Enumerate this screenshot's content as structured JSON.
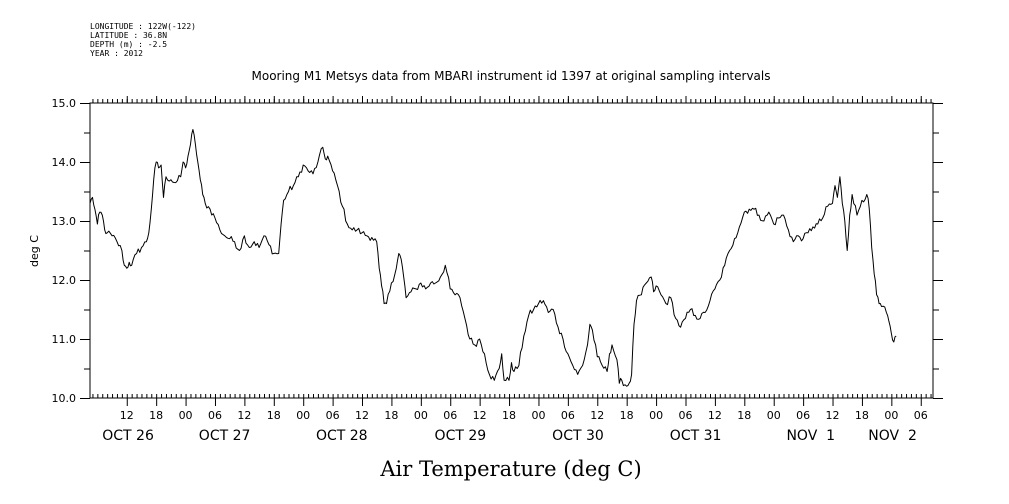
{
  "header": {
    "longitude": "LONGITUDE : 122W(-122)",
    "latitude": "LATITUDE : 36.8N",
    "depth": "DEPTH (m) : -2.5",
    "year": "YEAR : 2012"
  },
  "chart_data": {
    "type": "line",
    "title": "Mooring M1 Metsys data from MBARI instrument id 1397 at original sampling intervals",
    "xlabel": "Air Temperature (deg C)",
    "ylabel": "deg C",
    "ylim": [
      10.0,
      15.0
    ],
    "y_ticks": [
      "10.0",
      "11.0",
      "12.0",
      "13.0",
      "14.0",
      "15.0"
    ],
    "x_unit": "hours since OCT 26 00:00 (2012)",
    "xlim": [
      4.5,
      176.5
    ],
    "hour_ticks": [
      {
        "x": 12,
        "label": "12"
      },
      {
        "x": 18,
        "label": "18"
      },
      {
        "x": 24,
        "label": "00"
      },
      {
        "x": 30,
        "label": "06"
      },
      {
        "x": 36,
        "label": "12"
      },
      {
        "x": 42,
        "label": "18"
      },
      {
        "x": 48,
        "label": "00"
      },
      {
        "x": 54,
        "label": "06"
      },
      {
        "x": 60,
        "label": "12"
      },
      {
        "x": 66,
        "label": "18"
      },
      {
        "x": 72,
        "label": "00"
      },
      {
        "x": 78,
        "label": "06"
      },
      {
        "x": 84,
        "label": "12"
      },
      {
        "x": 90,
        "label": "18"
      },
      {
        "x": 96,
        "label": "00"
      },
      {
        "x": 102,
        "label": "06"
      },
      {
        "x": 108,
        "label": "12"
      },
      {
        "x": 114,
        "label": "18"
      },
      {
        "x": 120,
        "label": "00"
      },
      {
        "x": 126,
        "label": "06"
      },
      {
        "x": 132,
        "label": "12"
      },
      {
        "x": 138,
        "label": "18"
      },
      {
        "x": 144,
        "label": "00"
      },
      {
        "x": 150,
        "label": "06"
      },
      {
        "x": 156,
        "label": "12"
      },
      {
        "x": 162,
        "label": "18"
      },
      {
        "x": 168,
        "label": "00"
      },
      {
        "x": 174,
        "label": "06"
      }
    ],
    "day_labels": [
      {
        "x": 7,
        "label": "OCT 26"
      },
      {
        "x": 26.7,
        "label": "OCT 27"
      },
      {
        "x": 50.6,
        "label": "OCT 28"
      },
      {
        "x": 74.8,
        "label": "OCT 29"
      },
      {
        "x": 98.8,
        "label": "OCT 30"
      },
      {
        "x": 122.8,
        "label": "OCT 31"
      },
      {
        "x": 146.6,
        "label": "NOV  1"
      },
      {
        "x": 163.3,
        "label": "NOV  2"
      }
    ],
    "series": [
      {
        "points": [
          [
            4.5,
            13.3
          ],
          [
            5,
            13.4
          ],
          [
            5.5,
            13.2
          ],
          [
            6,
            12.95
          ],
          [
            6.5,
            13.15
          ],
          [
            7,
            13.1
          ],
          [
            7.5,
            12.85
          ],
          [
            8,
            12.8
          ],
          [
            9,
            12.75
          ],
          [
            10,
            12.65
          ],
          [
            11,
            12.5
          ],
          [
            11.5,
            12.25
          ],
          [
            12,
            12.2
          ],
          [
            12.5,
            12.3
          ],
          [
            13,
            12.25
          ],
          [
            14,
            12.45
          ],
          [
            15,
            12.55
          ],
          [
            16,
            12.65
          ],
          [
            16.5,
            12.8
          ],
          [
            17,
            13.2
          ],
          [
            17.5,
            13.7
          ],
          [
            18,
            14.0
          ],
          [
            18.5,
            13.9
          ],
          [
            19,
            13.95
          ],
          [
            19.5,
            13.4
          ],
          [
            20,
            13.75
          ],
          [
            21,
            13.7
          ],
          [
            22,
            13.65
          ],
          [
            23,
            13.75
          ],
          [
            23.5,
            14.0
          ],
          [
            24,
            13.9
          ],
          [
            24.5,
            14.1
          ],
          [
            25,
            14.3
          ],
          [
            25.5,
            14.55
          ],
          [
            26,
            14.3
          ],
          [
            26.5,
            14.0
          ],
          [
            27,
            13.7
          ],
          [
            27.5,
            13.45
          ],
          [
            28,
            13.3
          ],
          [
            29,
            13.2
          ],
          [
            30,
            13.05
          ],
          [
            31,
            12.85
          ],
          [
            32,
            12.75
          ],
          [
            33,
            12.7
          ],
          [
            34,
            12.65
          ],
          [
            35,
            12.5
          ],
          [
            36,
            12.75
          ],
          [
            37,
            12.55
          ],
          [
            38,
            12.65
          ],
          [
            39,
            12.55
          ],
          [
            40,
            12.75
          ],
          [
            41,
            12.6
          ],
          [
            42,
            12.45
          ],
          [
            43,
            12.45
          ],
          [
            43.5,
            12.95
          ],
          [
            44,
            13.35
          ],
          [
            45,
            13.5
          ],
          [
            46,
            13.6
          ],
          [
            47,
            13.75
          ],
          [
            48,
            13.95
          ],
          [
            49,
            13.85
          ],
          [
            50,
            13.8
          ],
          [
            51,
            14.0
          ],
          [
            52,
            14.25
          ],
          [
            52.5,
            14.05
          ],
          [
            53,
            14.1
          ],
          [
            54,
            13.85
          ],
          [
            55,
            13.6
          ],
          [
            56,
            13.25
          ],
          [
            57,
            12.95
          ],
          [
            58,
            12.85
          ],
          [
            59,
            12.85
          ],
          [
            60,
            12.8
          ],
          [
            61,
            12.75
          ],
          [
            62,
            12.72
          ],
          [
            63,
            12.65
          ],
          [
            63.5,
            12.2
          ],
          [
            64,
            11.9
          ],
          [
            64.5,
            11.6
          ],
          [
            65,
            11.6
          ],
          [
            66,
            11.95
          ],
          [
            67,
            12.2
          ],
          [
            67.5,
            12.45
          ],
          [
            68,
            12.35
          ],
          [
            68.5,
            12.05
          ],
          [
            69,
            11.7
          ],
          [
            70,
            11.8
          ],
          [
            71,
            11.85
          ],
          [
            72,
            11.95
          ],
          [
            73,
            11.85
          ],
          [
            74,
            11.95
          ],
          [
            75,
            11.95
          ],
          [
            76,
            12.05
          ],
          [
            77,
            12.25
          ],
          [
            78,
            11.85
          ],
          [
            79,
            11.75
          ],
          [
            80,
            11.7
          ],
          [
            81,
            11.35
          ],
          [
            82,
            11.0
          ],
          [
            83,
            10.9
          ],
          [
            84,
            11.0
          ],
          [
            85,
            10.75
          ],
          [
            86,
            10.4
          ],
          [
            87,
            10.3
          ],
          [
            88,
            10.5
          ],
          [
            88.5,
            10.75
          ],
          [
            89,
            10.3
          ],
          [
            90,
            10.3
          ],
          [
            90.5,
            10.6
          ],
          [
            91,
            10.45
          ],
          [
            92,
            10.55
          ],
          [
            93,
            11.05
          ],
          [
            94,
            11.4
          ],
          [
            95,
            11.5
          ],
          [
            96,
            11.6
          ],
          [
            97,
            11.65
          ],
          [
            98,
            11.45
          ],
          [
            99,
            11.5
          ],
          [
            100,
            11.2
          ],
          [
            101,
            11.0
          ],
          [
            102,
            10.75
          ],
          [
            103,
            10.55
          ],
          [
            104,
            10.4
          ],
          [
            105,
            10.55
          ],
          [
            106,
            10.9
          ],
          [
            106.5,
            11.25
          ],
          [
            107,
            11.15
          ],
          [
            108,
            10.7
          ],
          [
            109,
            10.55
          ],
          [
            110,
            10.45
          ],
          [
            110.5,
            10.75
          ],
          [
            111,
            10.9
          ],
          [
            112,
            10.65
          ],
          [
            112.5,
            10.25
          ],
          [
            113,
            10.3
          ],
          [
            114,
            10.2
          ],
          [
            114.5,
            10.25
          ],
          [
            115,
            10.4
          ],
          [
            115.5,
            11.25
          ],
          [
            116,
            11.65
          ],
          [
            117,
            11.75
          ],
          [
            118,
            11.95
          ],
          [
            119,
            12.05
          ],
          [
            119.5,
            11.8
          ],
          [
            120,
            11.9
          ],
          [
            121,
            11.75
          ],
          [
            122,
            11.6
          ],
          [
            123,
            11.7
          ],
          [
            124,
            11.35
          ],
          [
            125,
            11.2
          ],
          [
            126,
            11.35
          ],
          [
            127,
            11.5
          ],
          [
            128,
            11.4
          ],
          [
            129,
            11.35
          ],
          [
            130,
            11.45
          ],
          [
            131,
            11.65
          ],
          [
            132,
            11.85
          ],
          [
            133,
            12.0
          ],
          [
            134,
            12.25
          ],
          [
            135,
            12.5
          ],
          [
            136,
            12.7
          ],
          [
            137,
            12.9
          ],
          [
            138,
            13.15
          ],
          [
            139,
            13.2
          ],
          [
            140,
            13.2
          ],
          [
            141,
            13.1
          ],
          [
            142,
            13.0
          ],
          [
            143,
            13.15
          ],
          [
            144,
            12.95
          ],
          [
            145,
            13.05
          ],
          [
            146,
            13.1
          ],
          [
            147,
            12.85
          ],
          [
            148,
            12.65
          ],
          [
            149,
            12.75
          ],
          [
            150,
            12.7
          ],
          [
            151,
            12.8
          ],
          [
            152,
            12.9
          ],
          [
            153,
            12.95
          ],
          [
            154,
            13.05
          ],
          [
            155,
            13.25
          ],
          [
            156,
            13.3
          ],
          [
            156.5,
            13.6
          ],
          [
            157,
            13.4
          ],
          [
            157.5,
            13.75
          ],
          [
            158,
            13.3
          ],
          [
            158.5,
            13.0
          ],
          [
            159,
            12.5
          ],
          [
            159.5,
            13.1
          ],
          [
            160,
            13.45
          ],
          [
            161,
            13.1
          ],
          [
            162,
            13.35
          ],
          [
            163,
            13.45
          ],
          [
            163.5,
            13.2
          ],
          [
            164,
            12.55
          ],
          [
            164.5,
            12.1
          ],
          [
            165,
            11.75
          ],
          [
            165.5,
            11.6
          ],
          [
            166,
            11.55
          ],
          [
            167,
            11.45
          ],
          [
            167.5,
            11.3
          ],
          [
            168,
            11.1
          ],
          [
            168.5,
            10.95
          ],
          [
            169,
            11.05
          ]
        ]
      }
    ]
  }
}
